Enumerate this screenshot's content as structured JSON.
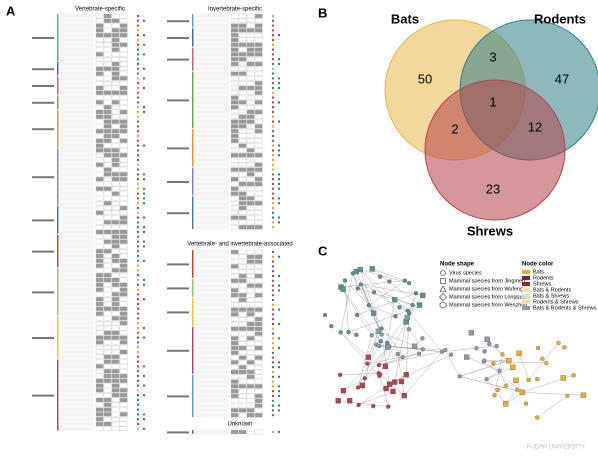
{
  "panel_a": {
    "label": "A",
    "sections": [
      "Vertebrate-specific",
      "Invertebrate-specific",
      "Vertebrate- and invertebrate-associated",
      "Unknown"
    ]
  },
  "panel_b": {
    "label": "B",
    "sets": [
      {
        "name": "Bats",
        "color": "#e8b84a"
      },
      {
        "name": "Rodents",
        "color": "#2f7f86"
      },
      {
        "name": "Shrews",
        "color": "#b5424a"
      }
    ],
    "counts": {
      "bats_only": 50,
      "rodents_only": 47,
      "shrews_only": 23,
      "bats_rodents": 3,
      "bats_shrews": 2,
      "rodents_shrews": 12,
      "all": 1
    }
  },
  "panel_c": {
    "label": "C",
    "shape_legend": {
      "title": "Node shape",
      "items": [
        "Virus species",
        "Mammal species from Jingmen",
        "Mammal species from Wufeng",
        "Mammal species from Longquan",
        "Mammal species from Wenzhou"
      ]
    },
    "color_legend": {
      "title": "Node color",
      "items": [
        {
          "label": "Bats",
          "color": "#f0a830"
        },
        {
          "label": "Rodents",
          "color": "#6e2a3a"
        },
        {
          "label": "Shrews",
          "color": "#b01d2a"
        },
        {
          "label": "Bats & Rodents",
          "color": "#f3dfb0"
        },
        {
          "label": "Bats & Shrews",
          "color": "#d9d9d9"
        },
        {
          "label": "Rodents & Shrews",
          "color": "#f7d9a8"
        },
        {
          "label": "Bats & Rodents & Shrews",
          "color": "#8a9aa8"
        }
      ]
    }
  },
  "watermark": "FUDAN UNIVERSITY"
}
